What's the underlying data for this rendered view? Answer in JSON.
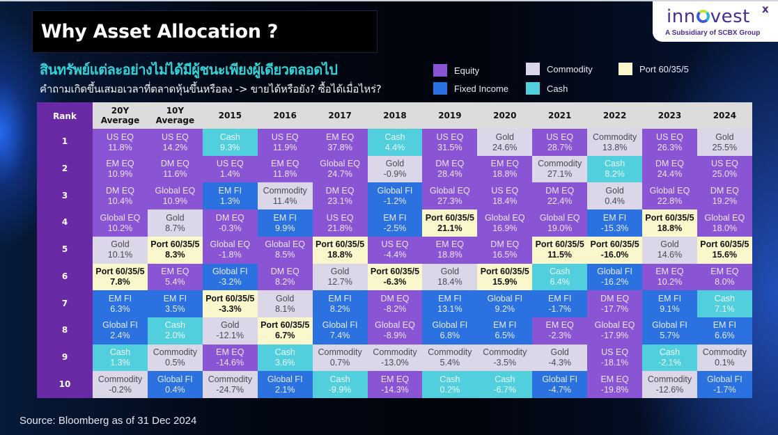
{
  "header": {
    "title": "Why Asset Allocation ?",
    "subtitle_th": "สินทรัพย์แต่ละอย่างไม่ได้มีผู้ชนะเพียงผู้เดียวตลอดไป",
    "question_th": "คำถามเกิดขึ้นเสมอเวลาที่ตลาดหุ้นขึ้นหรือลง -> ขายได้หรือยัง? ซื้อได้เมื่อไหร่?"
  },
  "logo": {
    "word_pre": "inn",
    "word_post": "vest",
    "superscript": "x",
    "tagline": "A Subsidiary of SCBX Group"
  },
  "legend": [
    {
      "key": "equity",
      "label": "Equity",
      "color": "#8a55d4"
    },
    {
      "key": "fixed",
      "label": "Fixed Income",
      "color": "#2b72e0"
    },
    {
      "key": "commodity",
      "label": "Commodity",
      "color": "#dcd6e9"
    },
    {
      "key": "cash",
      "label": "Cash",
      "color": "#52cfdc"
    },
    {
      "key": "port",
      "label": "Port 60/35/5",
      "color": "#fbf7cc"
    }
  ],
  "source": "Source: Bloomberg as of 31 Dec 2024",
  "chart_data": {
    "type": "table",
    "title": "Why Asset Allocation ?",
    "row_header": "Rank",
    "ranks": [
      "1",
      "2",
      "3",
      "4",
      "5",
      "6",
      "7",
      "8",
      "9",
      "10"
    ],
    "columns": [
      {
        "label": "20Y\nAverage",
        "cells": [
          {
            "asset": "US EQ",
            "value": "11.8%",
            "class": "equity"
          },
          {
            "asset": "EM EQ",
            "value": "10.9%",
            "class": "equity"
          },
          {
            "asset": "DM EQ",
            "value": "10.4%",
            "class": "equity"
          },
          {
            "asset": "Global EQ",
            "value": "10.2%",
            "class": "equity"
          },
          {
            "asset": "Gold",
            "value": "10.1%",
            "class": "commodity"
          },
          {
            "asset": "Port 60/35/5",
            "value": "7.8%",
            "class": "port"
          },
          {
            "asset": "EM FI",
            "value": "6.3%",
            "class": "fixed"
          },
          {
            "asset": "Global FI",
            "value": "2.4%",
            "class": "fixed"
          },
          {
            "asset": "Cash",
            "value": "1.3%",
            "class": "cash"
          },
          {
            "asset": "Commodity",
            "value": "-0.2%",
            "class": "commodity"
          }
        ]
      },
      {
        "label": "10Y\nAverage",
        "cells": [
          {
            "asset": "US EQ",
            "value": "14.2%",
            "class": "equity"
          },
          {
            "asset": "DM EQ",
            "value": "11.6%",
            "class": "equity"
          },
          {
            "asset": "Global EQ",
            "value": "10.9%",
            "class": "equity"
          },
          {
            "asset": "Gold",
            "value": "8.7%",
            "class": "commodity"
          },
          {
            "asset": "Port 60/35/5",
            "value": "8.3%",
            "class": "port"
          },
          {
            "asset": "EM EQ",
            "value": "5.4%",
            "class": "equity"
          },
          {
            "asset": "EM FI",
            "value": "3.5%",
            "class": "fixed"
          },
          {
            "asset": "Cash",
            "value": "2.0%",
            "class": "cash"
          },
          {
            "asset": "Commodity",
            "value": "0.5%",
            "class": "commodity"
          },
          {
            "asset": "Global FI",
            "value": "0.4%",
            "class": "fixed"
          }
        ]
      },
      {
        "label": "2015",
        "cells": [
          {
            "asset": "Cash",
            "value": "9.3%",
            "class": "cash"
          },
          {
            "asset": "US EQ",
            "value": "1.4%",
            "class": "equity"
          },
          {
            "asset": "EM FI",
            "value": "1.3%",
            "class": "fixed"
          },
          {
            "asset": "DM EQ",
            "value": "-0.3%",
            "class": "equity"
          },
          {
            "asset": "Global EQ",
            "value": "-1.8%",
            "class": "equity"
          },
          {
            "asset": "Global FI",
            "value": "-3.2%",
            "class": "fixed"
          },
          {
            "asset": "Port 60/35/5",
            "value": "-3.3%",
            "class": "port"
          },
          {
            "asset": "Gold",
            "value": "-12.1%",
            "class": "commodity"
          },
          {
            "asset": "EM EQ",
            "value": "-14.6%",
            "class": "equity"
          },
          {
            "asset": "Commodity",
            "value": "-24.7%",
            "class": "commodity"
          }
        ]
      },
      {
        "label": "2016",
        "cells": [
          {
            "asset": "US EQ",
            "value": "11.9%",
            "class": "equity"
          },
          {
            "asset": "EM EQ",
            "value": "11.8%",
            "class": "equity"
          },
          {
            "asset": "Commodity",
            "value": "11.4%",
            "class": "commodity"
          },
          {
            "asset": "EM FI",
            "value": "9.9%",
            "class": "fixed"
          },
          {
            "asset": "Global EQ",
            "value": "8.5%",
            "class": "equity"
          },
          {
            "asset": "DM EQ",
            "value": "8.2%",
            "class": "equity"
          },
          {
            "asset": "Gold",
            "value": "8.1%",
            "class": "commodity"
          },
          {
            "asset": "Port 60/35/5",
            "value": "6.7%",
            "class": "port"
          },
          {
            "asset": "Cash",
            "value": "3.6%",
            "class": "cash"
          },
          {
            "asset": "Global FI",
            "value": "2.1%",
            "class": "fixed"
          }
        ]
      },
      {
        "label": "2017",
        "cells": [
          {
            "asset": "EM EQ",
            "value": "37.8%",
            "class": "equity"
          },
          {
            "asset": "Global EQ",
            "value": "24.7%",
            "class": "equity"
          },
          {
            "asset": "DM EQ",
            "value": "23.1%",
            "class": "equity"
          },
          {
            "asset": "US EQ",
            "value": "21.8%",
            "class": "equity"
          },
          {
            "asset": "Port 60/35/5",
            "value": "18.8%",
            "class": "port"
          },
          {
            "asset": "Gold",
            "value": "12.7%",
            "class": "commodity"
          },
          {
            "asset": "EM FI",
            "value": "8.2%",
            "class": "fixed"
          },
          {
            "asset": "Global FI",
            "value": "7.4%",
            "class": "fixed"
          },
          {
            "asset": "Commodity",
            "value": "0.7%",
            "class": "commodity"
          },
          {
            "asset": "Cash",
            "value": "-9.9%",
            "class": "cash"
          }
        ]
      },
      {
        "label": "2018",
        "cells": [
          {
            "asset": "Cash",
            "value": "4.4%",
            "class": "cash"
          },
          {
            "asset": "Gold",
            "value": "-0.9%",
            "class": "commodity"
          },
          {
            "asset": "Global FI",
            "value": "-1.2%",
            "class": "fixed"
          },
          {
            "asset": "EM FI",
            "value": "-2.5%",
            "class": "fixed"
          },
          {
            "asset": "US EQ",
            "value": "-4.4%",
            "class": "equity"
          },
          {
            "asset": "Port 60/35/5",
            "value": "-6.3%",
            "class": "port"
          },
          {
            "asset": "DM EQ",
            "value": "-8.2%",
            "class": "equity"
          },
          {
            "asset": "Global EQ",
            "value": "-8.9%",
            "class": "equity"
          },
          {
            "asset": "Commodity",
            "value": "-13.0%",
            "class": "commodity"
          },
          {
            "asset": "EM EQ",
            "value": "-14.3%",
            "class": "equity"
          }
        ]
      },
      {
        "label": "2019",
        "cells": [
          {
            "asset": "US EQ",
            "value": "31.5%",
            "class": "equity"
          },
          {
            "asset": "DM EQ",
            "value": "28.4%",
            "class": "equity"
          },
          {
            "asset": "Global EQ",
            "value": "27.3%",
            "class": "equity"
          },
          {
            "asset": "Port 60/35/5",
            "value": "21.1%",
            "class": "port"
          },
          {
            "asset": "EM EQ",
            "value": "18.8%",
            "class": "equity"
          },
          {
            "asset": "Gold",
            "value": "18.4%",
            "class": "commodity"
          },
          {
            "asset": "EM FI",
            "value": "13.1%",
            "class": "fixed"
          },
          {
            "asset": "Global FI",
            "value": "6.8%",
            "class": "fixed"
          },
          {
            "asset": "Commodity",
            "value": "5.4%",
            "class": "commodity"
          },
          {
            "asset": "Cash",
            "value": "0.2%",
            "class": "cash"
          }
        ]
      },
      {
        "label": "2020",
        "cells": [
          {
            "asset": "Gold",
            "value": "24.6%",
            "class": "commodity"
          },
          {
            "asset": "EM EQ",
            "value": "18.8%",
            "class": "equity"
          },
          {
            "asset": "US EQ",
            "value": "18.4%",
            "class": "equity"
          },
          {
            "asset": "Global EQ",
            "value": "16.9%",
            "class": "equity"
          },
          {
            "asset": "DM EQ",
            "value": "16.5%",
            "class": "equity"
          },
          {
            "asset": "Port 60/35/5",
            "value": "15.9%",
            "class": "port"
          },
          {
            "asset": "Global FI",
            "value": "9.2%",
            "class": "fixed"
          },
          {
            "asset": "EM FI",
            "value": "6.5%",
            "class": "fixed"
          },
          {
            "asset": "Commodity",
            "value": "-3.5%",
            "class": "commodity"
          },
          {
            "asset": "Cash",
            "value": "-6.7%",
            "class": "cash"
          }
        ]
      },
      {
        "label": "2021",
        "cells": [
          {
            "asset": "US EQ",
            "value": "28.7%",
            "class": "equity"
          },
          {
            "asset": "Commodity",
            "value": "27.1%",
            "class": "commodity"
          },
          {
            "asset": "DM EQ",
            "value": "22.4%",
            "class": "equity"
          },
          {
            "asset": "Global EQ",
            "value": "19.0%",
            "class": "equity"
          },
          {
            "asset": "Port 60/35/5",
            "value": "11.5%",
            "class": "port"
          },
          {
            "asset": "Cash",
            "value": "6.4%",
            "class": "cash"
          },
          {
            "asset": "EM FI",
            "value": "-1.7%",
            "class": "fixed"
          },
          {
            "asset": "EM EQ",
            "value": "-2.3%",
            "class": "equity"
          },
          {
            "asset": "Gold",
            "value": "-4.3%",
            "class": "commodity"
          },
          {
            "asset": "Global FI",
            "value": "-4.7%",
            "class": "fixed"
          }
        ]
      },
      {
        "label": "2022",
        "cells": [
          {
            "asset": "Commodity",
            "value": "13.8%",
            "class": "commodity"
          },
          {
            "asset": "Cash",
            "value": "8.2%",
            "class": "cash"
          },
          {
            "asset": "Gold",
            "value": "0.4%",
            "class": "commodity"
          },
          {
            "asset": "EM FI",
            "value": "-15.3%",
            "class": "fixed"
          },
          {
            "asset": "Port 60/35/5",
            "value": "-16.0%",
            "class": "port"
          },
          {
            "asset": "Global FI",
            "value": "-16.2%",
            "class": "fixed"
          },
          {
            "asset": "DM EQ",
            "value": "-17.7%",
            "class": "equity"
          },
          {
            "asset": "Global EQ",
            "value": "-17.9%",
            "class": "equity"
          },
          {
            "asset": "US EQ",
            "value": "-18.1%",
            "class": "equity"
          },
          {
            "asset": "EM EQ",
            "value": "-19.8%",
            "class": "equity"
          }
        ]
      },
      {
        "label": "2023",
        "cells": [
          {
            "asset": "US EQ",
            "value": "26.3%",
            "class": "equity"
          },
          {
            "asset": "DM EQ",
            "value": "24.4%",
            "class": "equity"
          },
          {
            "asset": "Global EQ",
            "value": "22.8%",
            "class": "equity"
          },
          {
            "asset": "Port 60/35/5",
            "value": "18.8%",
            "class": "port"
          },
          {
            "asset": "Gold",
            "value": "14.6%",
            "class": "commodity"
          },
          {
            "asset": "EM EQ",
            "value": "10.2%",
            "class": "equity"
          },
          {
            "asset": "EM FI",
            "value": "9.1%",
            "class": "fixed"
          },
          {
            "asset": "Global FI",
            "value": "5.7%",
            "class": "fixed"
          },
          {
            "asset": "Cash",
            "value": "-2.1%",
            "class": "cash"
          },
          {
            "asset": "Commodity",
            "value": "-12.6%",
            "class": "commodity"
          }
        ]
      },
      {
        "label": "2024",
        "cells": [
          {
            "asset": "Gold",
            "value": "25.5%",
            "class": "commodity"
          },
          {
            "asset": "US EQ",
            "value": "25.0%",
            "class": "equity"
          },
          {
            "asset": "DM EQ",
            "value": "19.2%",
            "class": "equity"
          },
          {
            "asset": "Global EQ",
            "value": "18.0%",
            "class": "equity"
          },
          {
            "asset": "Port 60/35/5",
            "value": "15.6%",
            "class": "port"
          },
          {
            "asset": "EM EQ",
            "value": "8.0%",
            "class": "equity"
          },
          {
            "asset": "Cash",
            "value": "7.1%",
            "class": "cash"
          },
          {
            "asset": "EM FI",
            "value": "6.6%",
            "class": "fixed"
          },
          {
            "asset": "Commodity",
            "value": "0.1%",
            "class": "commodity"
          },
          {
            "asset": "Global FI",
            "value": "-1.7%",
            "class": "fixed"
          }
        ]
      }
    ]
  }
}
